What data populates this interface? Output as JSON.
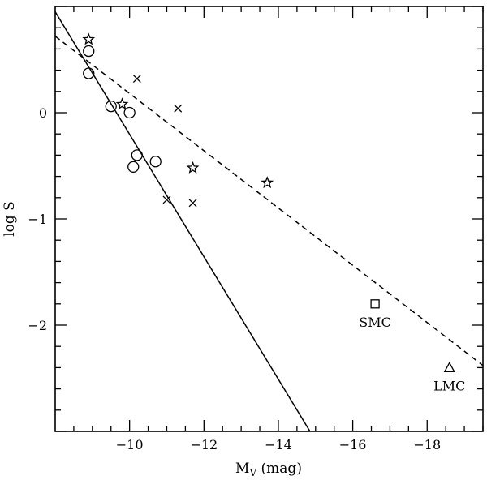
{
  "chart_data": {
    "type": "scatter",
    "title": "",
    "xlabel": "M",
    "xlabel_sub": "V",
    "xlabel_unit": " (mag)",
    "ylabel": "log S",
    "xlim": [
      -8,
      -19.5
    ],
    "ylim": [
      -3,
      1
    ],
    "xticks": [
      -10,
      -12,
      -14,
      -16,
      -18
    ],
    "xtick_labels": [
      "−10",
      "−12",
      "−14",
      "−16",
      "−18"
    ],
    "yticks": [
      0,
      -1,
      -2
    ],
    "ytick_labels": [
      "0",
      "−1",
      "−2"
    ],
    "series": [
      {
        "marker": "circle",
        "points": [
          [
            -8.9,
            0.58
          ],
          [
            -8.9,
            0.37
          ],
          [
            -9.5,
            0.06
          ],
          [
            -10.0,
            0.0
          ],
          [
            -10.2,
            -0.4
          ],
          [
            -10.1,
            -0.51
          ],
          [
            -10.7,
            -0.46
          ]
        ]
      },
      {
        "marker": "star",
        "points": [
          [
            -8.9,
            0.69
          ],
          [
            -9.8,
            0.08
          ],
          [
            -11.7,
            -0.52
          ],
          [
            -13.7,
            -0.66
          ]
        ]
      },
      {
        "marker": "cross",
        "points": [
          [
            -10.2,
            0.32
          ],
          [
            -11.3,
            0.04
          ],
          [
            -11.0,
            -0.82
          ],
          [
            -11.7,
            -0.85
          ]
        ]
      },
      {
        "marker": "square",
        "points": [
          [
            -16.6,
            -1.8
          ]
        ]
      },
      {
        "marker": "triangle",
        "points": [
          [
            -18.6,
            -2.4
          ]
        ]
      }
    ],
    "fit_lines": [
      {
        "style": "solid",
        "from": [
          -8.0,
          0.95
        ],
        "to": [
          -14.85,
          -3.0
        ]
      },
      {
        "style": "dashed",
        "from": [
          -8.0,
          0.72
        ],
        "to": [
          -19.5,
          -2.38
        ]
      }
    ],
    "annotations": [
      {
        "text": "SMC",
        "x": -16.6,
        "y": -1.8
      },
      {
        "text": "LMC",
        "x": -18.6,
        "y": -2.4
      }
    ]
  }
}
